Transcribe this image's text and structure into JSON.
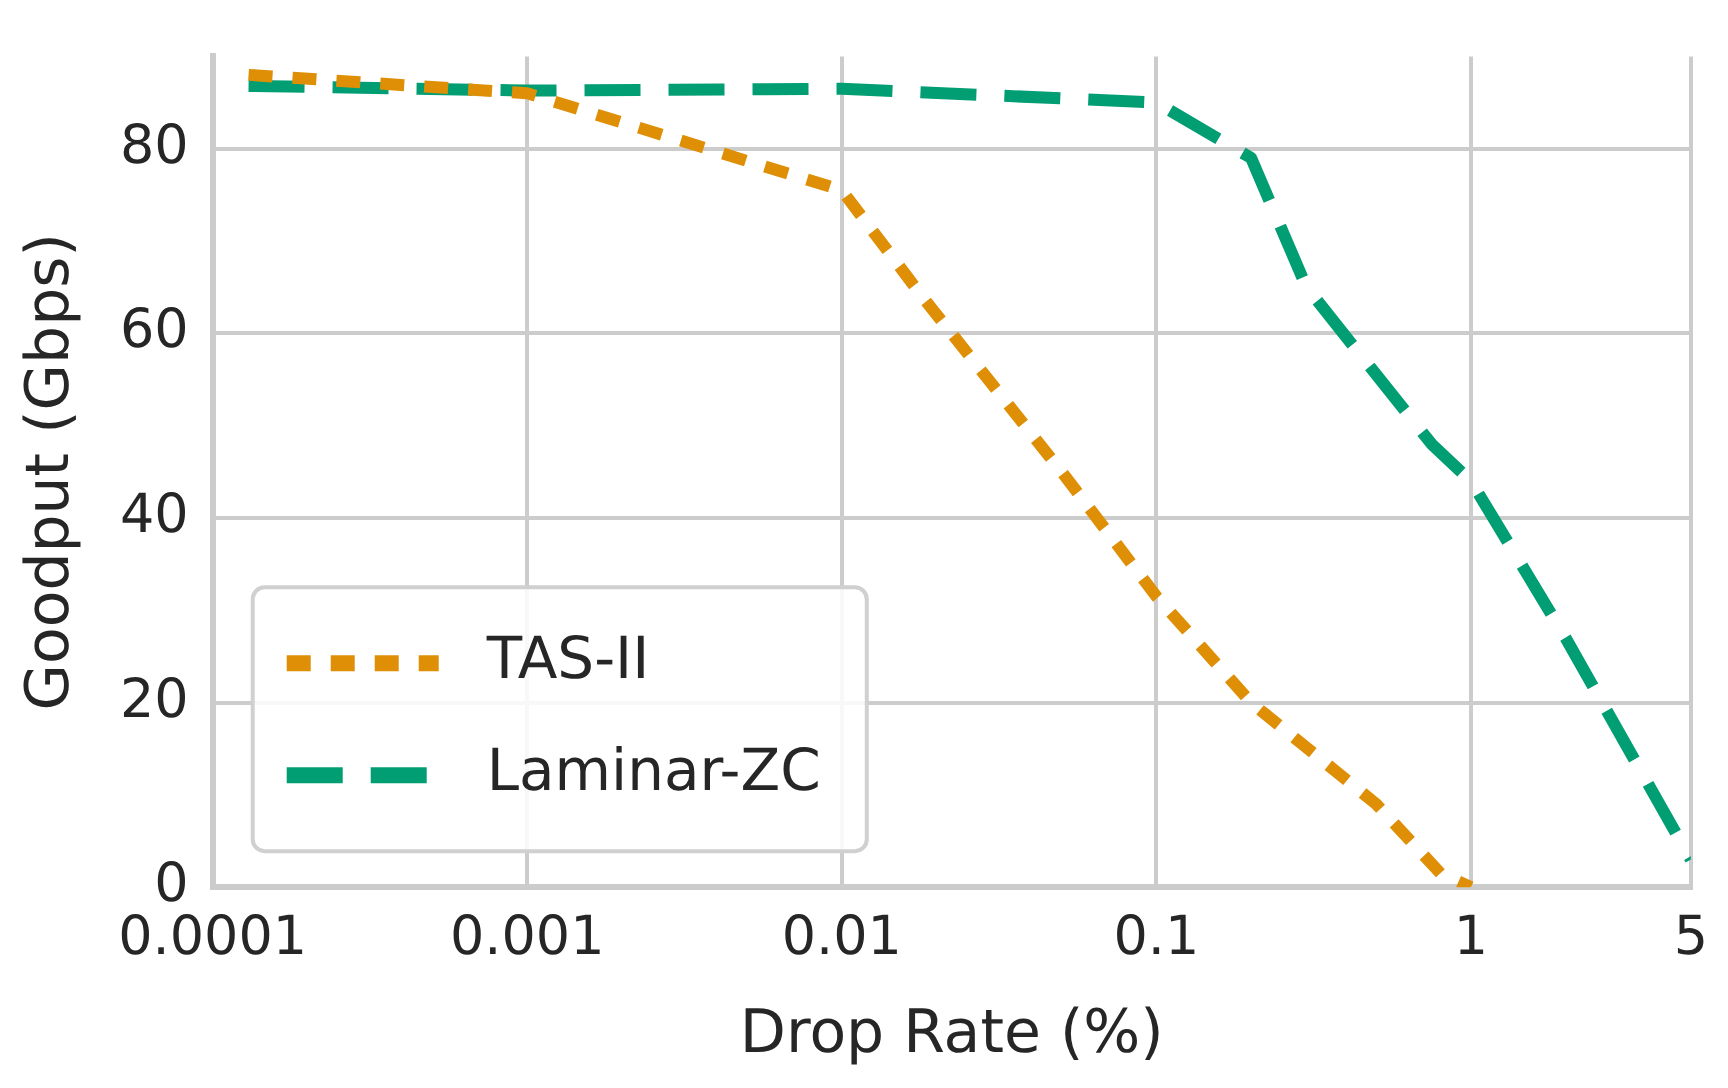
{
  "chart_data": {
    "type": "line",
    "xlabel": "Drop Rate (%)",
    "ylabel": "Goodput (Gbps)",
    "log": "x",
    "xlim": [
      0.0001,
      5
    ],
    "xticks": [
      0.0001,
      0.001,
      0.01,
      0.1,
      1,
      5
    ],
    "ylim": [
      0,
      90
    ],
    "yticks": [
      0,
      20,
      40,
      60,
      80
    ],
    "grid": true,
    "legend": "bottom left",
    "marker": "none",
    "series": [
      {
        "name": "TAS-II",
        "color": "#de8f05",
        "line_style": "dotted",
        "x": [
          0.00013,
          0.001,
          0.003,
          0.01,
          0.018,
          0.05,
          0.1,
          0.2,
          0.5,
          0.8,
          1
        ],
        "values": [
          88,
          86,
          81,
          75.5,
          64,
          45,
          31.5,
          20,
          9,
          1.5,
          0
        ]
      },
      {
        "name": "Laminar-ZC",
        "color": "#029e73",
        "line_style": "dashed",
        "x": [
          0.00013,
          0.001,
          0.01,
          0.1,
          0.2,
          0.3,
          0.75,
          1,
          2,
          5
        ],
        "values": [
          86.8,
          86.3,
          86.5,
          85,
          79,
          65,
          48,
          44,
          27,
          3
        ]
      }
    ]
  }
}
